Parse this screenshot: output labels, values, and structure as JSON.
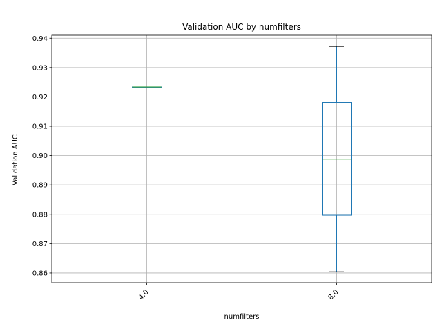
{
  "chart_data": {
    "type": "box",
    "title": "Validation AUC by numfilters",
    "xlabel": "numfilters",
    "ylabel": "Validation AUC",
    "categories": [
      "4.0",
      "8.0"
    ],
    "boxes": [
      {
        "category": "4.0",
        "whisker_low": 0.9234,
        "q1": 0.9234,
        "median": 0.9234,
        "q3": 0.9234,
        "whisker_high": 0.9234
      },
      {
        "category": "8.0",
        "whisker_low": 0.8604,
        "q1": 0.8797,
        "median": 0.8988,
        "q3": 0.9181,
        "whisker_high": 0.9372
      }
    ],
    "ylim": [
      0.8567,
      0.941
    ],
    "yticks": [
      0.86,
      0.87,
      0.88,
      0.89,
      0.9,
      0.91,
      0.92,
      0.93,
      0.94
    ],
    "ytick_labels": [
      "0.86",
      "0.87",
      "0.88",
      "0.89",
      "0.90",
      "0.91",
      "0.92",
      "0.93",
      "0.94"
    ],
    "grid": true,
    "colors": {
      "box": "#1f77b4",
      "median": "#2ca02c",
      "caps": "#000000",
      "grid": "#b0b0b0"
    }
  }
}
